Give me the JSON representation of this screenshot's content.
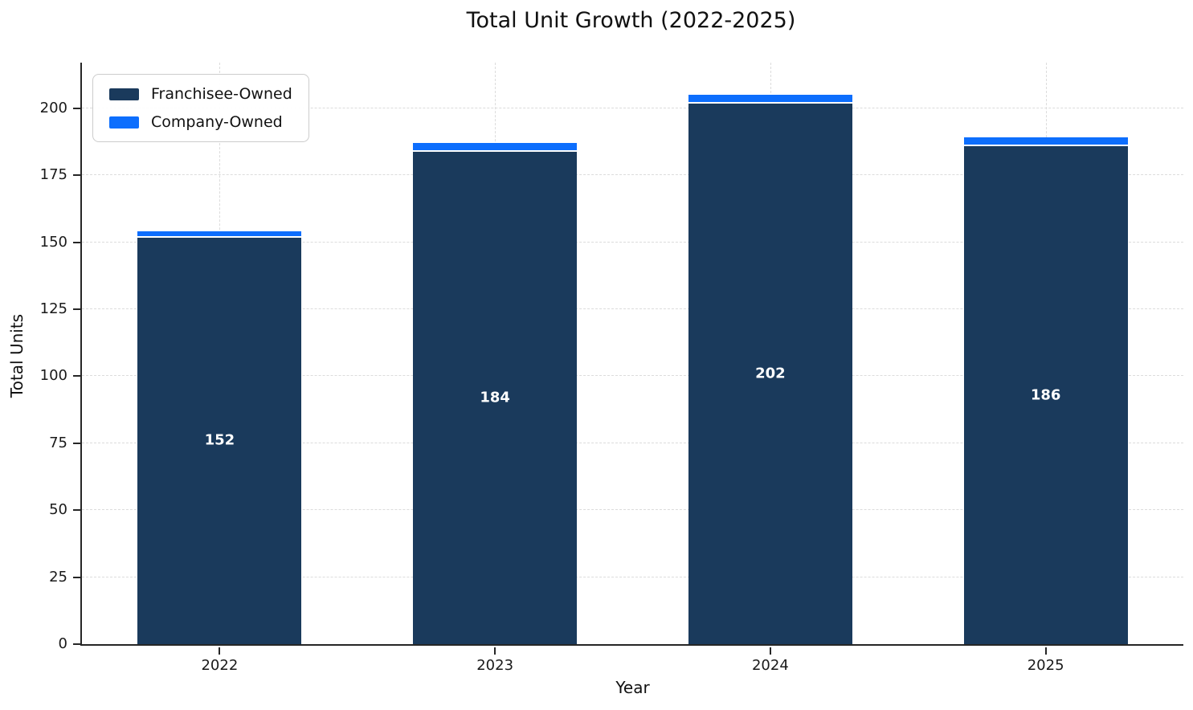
{
  "page": {
    "title": "Total Unit Growth (2022-2025)"
  },
  "chart_data": {
    "type": "bar",
    "stacked": true,
    "title": "Total Unit Growth (2022-2025)",
    "xlabel": "Year",
    "ylabel": "Total Units",
    "categories": [
      "2022",
      "2023",
      "2024",
      "2025"
    ],
    "series": [
      {
        "name": "Franchisee-Owned",
        "color": "#1a3a5c",
        "values": [
          152,
          184,
          202,
          186
        ]
      },
      {
        "name": "Company-Owned",
        "color": "#0d6efd",
        "values": [
          2,
          3,
          3,
          3
        ]
      }
    ],
    "totals": [
      154,
      187,
      205,
      189
    ],
    "bar_labels": [
      "152",
      "184",
      "202",
      "186"
    ],
    "bar_label_color": "#ffffff",
    "ylim": [
      0,
      217
    ],
    "yticks": [
      0,
      25,
      50,
      75,
      100,
      125,
      150,
      175,
      200
    ],
    "grid": "dashed-both-axes",
    "grid_color": "#dcdcdc",
    "spine_color": "#262626",
    "bar_edge_color": "#ffffff",
    "legend_position": "upper-left"
  }
}
